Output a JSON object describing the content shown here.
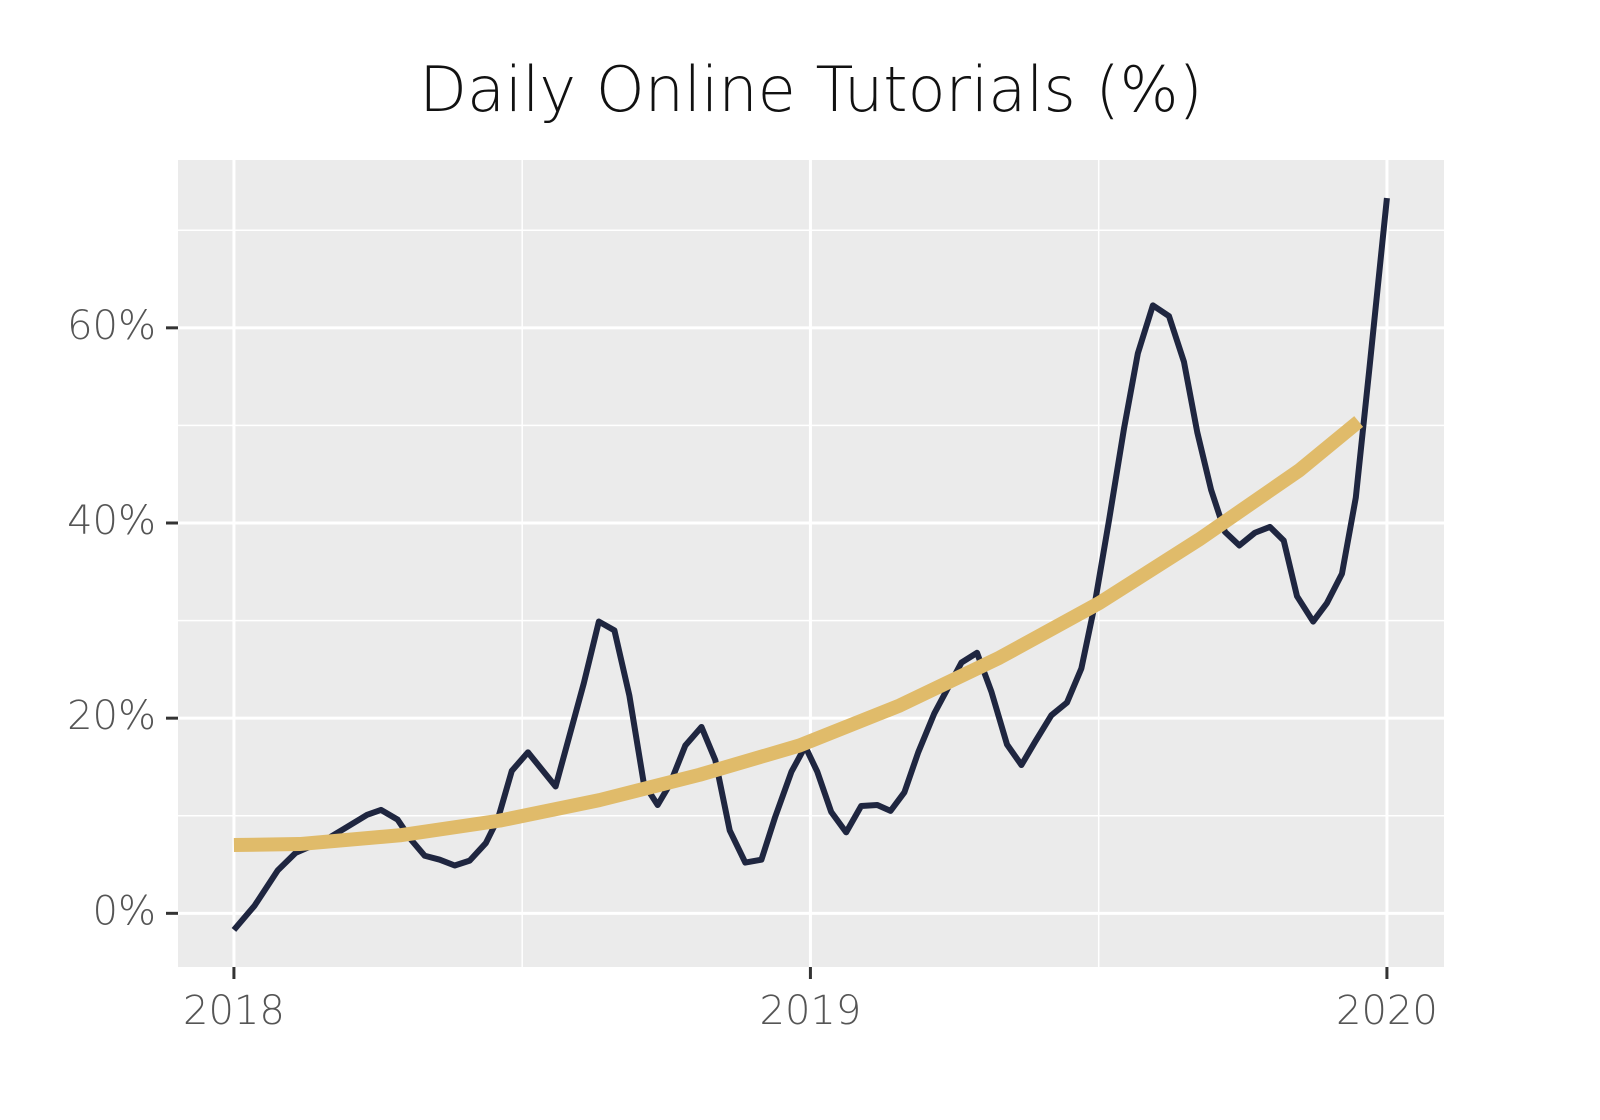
{
  "chart_data": {
    "type": "line",
    "title": "Daily Online Tutorials (%)",
    "x": [
      2018.0,
      2018.036,
      2018.076,
      2018.107,
      2018.158,
      2018.192,
      2018.231,
      2018.255,
      2018.284,
      2018.308,
      2018.331,
      2018.357,
      2018.383,
      2018.409,
      2018.437,
      2018.458,
      2018.482,
      2018.51,
      2018.558,
      2018.607,
      2018.633,
      2018.66,
      2018.686,
      2018.711,
      2018.735,
      2018.756,
      2018.783,
      2018.811,
      2018.835,
      2018.86,
      2018.887,
      2018.915,
      2018.939,
      2018.967,
      2018.991,
      2019.012,
      2019.036,
      2019.062,
      2019.088,
      2019.116,
      2019.139,
      2019.163,
      2019.187,
      2019.215,
      2019.262,
      2019.289,
      2019.314,
      2019.341,
      2019.366,
      2019.39,
      2019.418,
      2019.445,
      2019.47,
      2019.492,
      2019.518,
      2019.544,
      2019.568,
      2019.594,
      2019.622,
      2019.648,
      2019.671,
      2019.695,
      2019.719,
      2019.744,
      2019.771,
      2019.797,
      2019.821,
      2019.844,
      2019.872,
      2019.896,
      2019.922,
      2019.946,
      2019.969,
      2020.0
    ],
    "series": [
      {
        "color": "#1f2640",
        "values": [
          -1.7,
          0.8,
          4.4,
          6.2,
          7.5,
          8.7,
          10.1,
          10.6,
          9.6,
          7.5,
          5.9,
          5.5,
          4.9,
          5.4,
          7.2,
          9.7,
          14.6,
          16.5,
          13.0,
          23.6,
          29.9,
          29.0,
          22.3,
          13.3,
          11.1,
          13.2,
          17.2,
          19.1,
          15.7,
          8.5,
          5.2,
          5.5,
          9.9,
          14.5,
          17.1,
          14.5,
          10.4,
          8.3,
          11.0,
          11.1,
          10.5,
          12.4,
          16.5,
          20.5,
          25.7,
          26.7,
          22.7,
          17.3,
          15.2,
          17.6,
          20.3,
          21.6,
          25.1,
          31.3,
          40.3,
          49.7,
          57.4,
          62.3,
          61.2,
          56.5,
          49.3,
          43.4,
          39.1,
          37.7,
          39.0,
          39.6,
          38.2,
          32.5,
          29.9,
          31.8,
          34.8,
          42.6,
          55.5,
          73.3
        ]
      },
      {
        "color": "#e0bb6a",
        "x": [
          2018.0,
          2018.114,
          2018.288,
          2018.461,
          2018.634,
          2018.808,
          2018.981,
          2019.155,
          2019.328,
          2019.501,
          2019.674,
          2019.848,
          2019.951
        ],
        "values": [
          7.0,
          7.1,
          8.0,
          9.5,
          11.6,
          14.2,
          17.2,
          21.3,
          26.2,
          31.8,
          38.3,
          45.4,
          50.4
        ]
      }
    ],
    "xlim": [
      2017.903,
      2020.099
    ],
    "ylim": [
      -5.5,
      77.2
    ],
    "xticks": [
      2018,
      2019,
      2020
    ],
    "xminorticks": [
      2018.5,
      2019.5
    ],
    "yticks": [
      {
        "value": 0,
        "label": "0%"
      },
      {
        "value": 20,
        "label": "20%"
      },
      {
        "value": 40,
        "label": "40%"
      },
      {
        "value": 60,
        "label": "60%"
      }
    ],
    "yminorticks": [
      10,
      30,
      50,
      70
    ],
    "grid": true
  }
}
